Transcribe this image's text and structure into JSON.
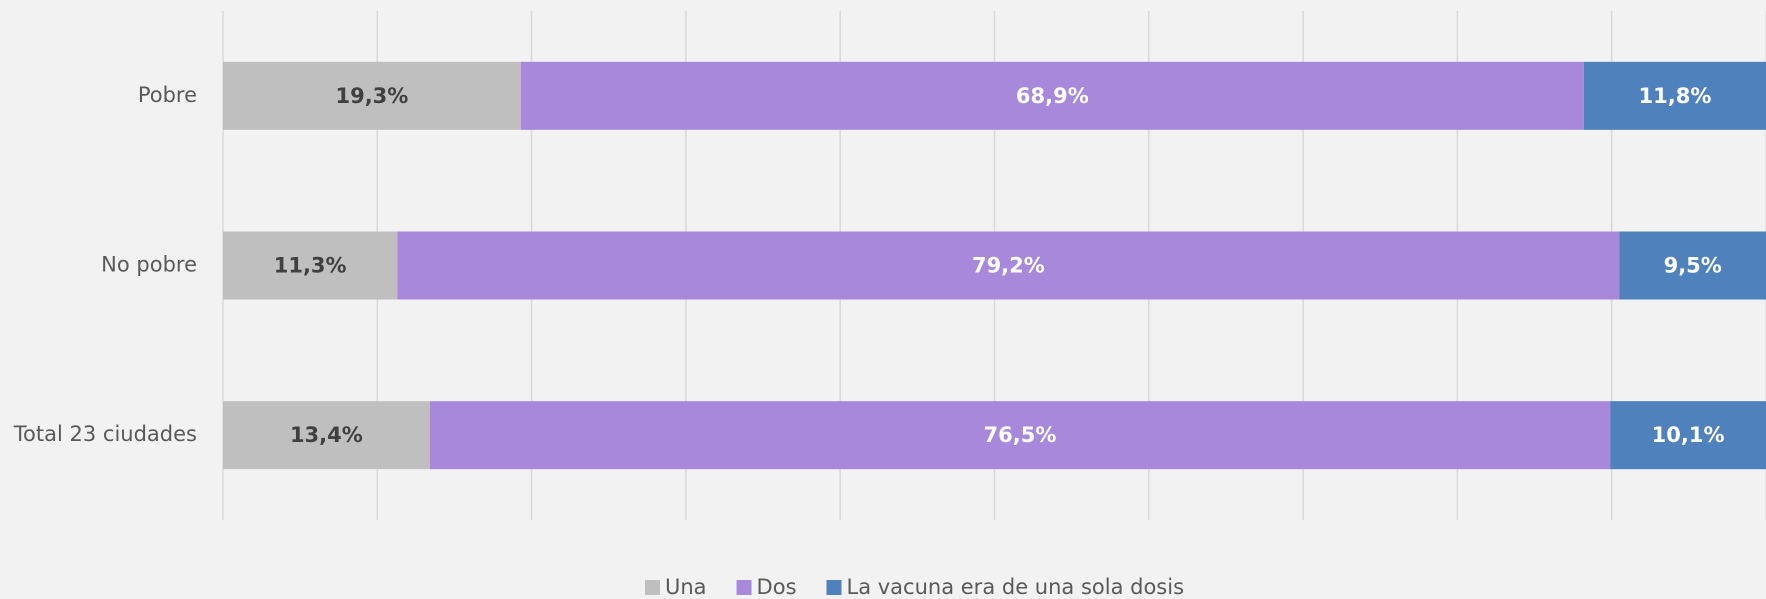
{
  "chart_data": {
    "type": "stacked_barh",
    "categories": [
      "Pobre",
      "No pobre",
      "Total 23 ciudades"
    ],
    "series": [
      {
        "name": "Una",
        "color": "#bfbfbf",
        "values": [
          19.3,
          11.3,
          13.4
        ],
        "value_labels": [
          "19,3%",
          "11,3%",
          "13,4%"
        ]
      },
      {
        "name": "Dos",
        "color": "#a888db",
        "values": [
          68.9,
          79.2,
          76.5
        ],
        "value_labels": [
          "68,9%",
          "79,2%",
          "76,5%"
        ]
      },
      {
        "name": "La vacuna era de una sola dosis",
        "color": "#4f81bd",
        "values": [
          11.8,
          9.5,
          10.1
        ],
        "value_labels": [
          "11,8%",
          "9,5%",
          "10,1%"
        ]
      }
    ],
    "xlim": [
      0,
      100
    ],
    "xticks": [
      0,
      10,
      20,
      30,
      40,
      50,
      60,
      70,
      80,
      90,
      100
    ],
    "grid": true,
    "legend": "bottom"
  }
}
